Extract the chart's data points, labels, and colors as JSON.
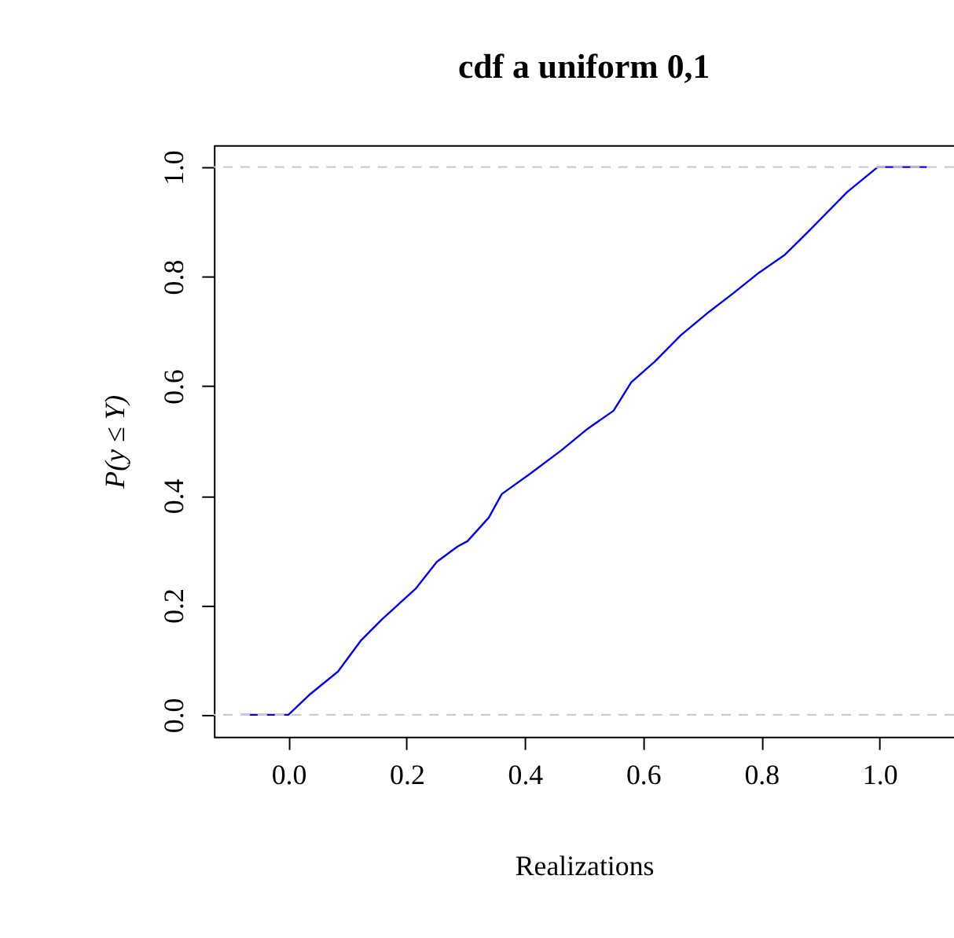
{
  "chart_data": {
    "type": "line",
    "title": "cdf a uniform 0,1",
    "xlabel": "Realizations",
    "ylabel": "P(y ≤ Y)",
    "series": [
      {
        "color": "#0000ff",
        "x": [
          -0.08,
          0.0,
          0.035,
          0.084,
          0.123,
          0.158,
          0.216,
          0.251,
          0.286,
          0.303,
          0.339,
          0.361,
          0.409,
          0.462,
          0.506,
          0.55,
          0.58,
          0.62,
          0.664,
          0.712,
          0.752,
          0.796,
          0.84,
          0.884,
          0.945,
          0.997,
          1.08
        ],
        "values": [
          0.0,
          0.0,
          0.036,
          0.079,
          0.136,
          0.174,
          0.231,
          0.279,
          0.307,
          0.317,
          0.36,
          0.403,
          0.44,
          0.483,
          0.522,
          0.555,
          0.607,
          0.645,
          0.693,
          0.736,
          0.769,
          0.807,
          0.84,
          0.887,
          0.954,
          1.0,
          1.0
        ]
      }
    ],
    "xlim": [
      -0.126,
      1.126
    ],
    "ylim": [
      -0.04,
      1.04
    ],
    "xticks": [
      {
        "value": 0,
        "label": "0.0"
      },
      {
        "value": 0.2,
        "label": "0.2"
      },
      {
        "value": 0.4,
        "label": "0.4"
      },
      {
        "value": 0.6,
        "label": "0.6"
      },
      {
        "value": 0.8,
        "label": "0.8"
      },
      {
        "value": 1,
        "label": "1.0"
      }
    ],
    "yticks": [
      {
        "value": 0,
        "label": "0.0"
      },
      {
        "value": 0.2,
        "label": "0.2"
      },
      {
        "value": 0.4,
        "label": "0.4"
      },
      {
        "value": 0.6,
        "label": "0.6"
      },
      {
        "value": 0.8,
        "label": "0.8"
      },
      {
        "value": 1,
        "label": "1.0"
      }
    ],
    "ref_lines": [
      {
        "axis": "y",
        "value": 0,
        "color": "#cccccc",
        "line_style": "dashed"
      },
      {
        "axis": "y",
        "value": 1,
        "color": "#cccccc",
        "line_style": "dashed"
      }
    ],
    "grid": false,
    "line_style": "solid",
    "marker": "none"
  }
}
